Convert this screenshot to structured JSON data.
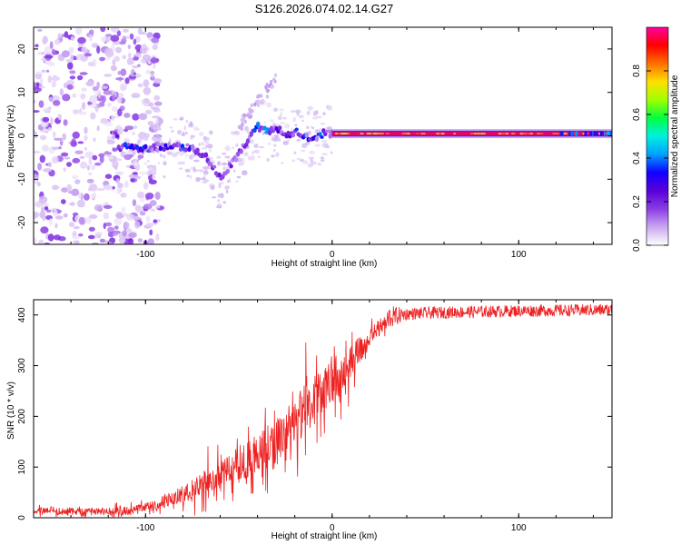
{
  "title": "S126.2026.074.02.14.G27",
  "chart_data": [
    {
      "type": "heatmap",
      "name": "spectrogram",
      "xlabel": "Height of straight line (km)",
      "ylabel": "Frequency (Hz)",
      "xlim": [
        -160,
        150
      ],
      "ylim": [
        -25,
        25
      ],
      "xticks": [
        -100,
        0,
        100
      ],
      "yticks": [
        20,
        10,
        0,
        -10,
        -20
      ],
      "colorbar": {
        "label": "Normalized spectral amplitude",
        "range": [
          0,
          1
        ],
        "ticks": [
          0.0,
          0.2,
          0.4,
          0.6,
          0.8
        ],
        "tick_labels": [
          "0.0",
          "0.2",
          "0.4",
          "0.6",
          "0.8"
        ],
        "colormap": [
          "#ffffff",
          "#c9a8f0",
          "#8a3ce6",
          "#5a00d8",
          "#1000ff",
          "#00a0ff",
          "#00f0e0",
          "#00ff40",
          "#a0ff00",
          "#ffe000",
          "#ff7000",
          "#ff0000",
          "#ff00a0"
        ]
      },
      "description_values": {
        "noise_region_x": [
          -160,
          -100
        ],
        "tone_ridge": [
          {
            "x": -115,
            "f": -2.5
          },
          {
            "x": -100,
            "f": -3
          },
          {
            "x": -90,
            "f": -2.5
          },
          {
            "x": -80,
            "f": -2.5
          },
          {
            "x": -72,
            "f": -3.5
          },
          {
            "x": -65,
            "f": -6
          },
          {
            "x": -60,
            "f": -10
          },
          {
            "x": -55,
            "f": -7
          },
          {
            "x": -50,
            "f": -4
          },
          {
            "x": -45,
            "f": -1
          },
          {
            "x": -40,
            "f": 2
          },
          {
            "x": -35,
            "f": 1
          },
          {
            "x": -30,
            "f": 2
          },
          {
            "x": -25,
            "f": 0
          },
          {
            "x": -20,
            "f": 1
          },
          {
            "x": -15,
            "f": 0
          },
          {
            "x": -10,
            "f": -1
          },
          {
            "x": -5,
            "f": 0.5
          },
          {
            "x": 0,
            "f": 0.5
          },
          {
            "x": 150,
            "f": 0.5
          }
        ],
        "steady_tone_start_x": 0,
        "steady_tone_amplitude": 0.95
      }
    },
    {
      "type": "line",
      "name": "snr",
      "xlabel": "Height of straight line (km)",
      "ylabel": "SNR (10 * v/v)",
      "xlim": [
        -160,
        150
      ],
      "ylim": [
        0,
        430
      ],
      "xticks": [
        -100,
        0,
        100
      ],
      "yticks": [
        0,
        100,
        200,
        300,
        400
      ],
      "color": "#ee2020",
      "trend": [
        {
          "x": -160,
          "y": 15
        },
        {
          "x": -130,
          "y": 12
        },
        {
          "x": -110,
          "y": 15
        },
        {
          "x": -95,
          "y": 25
        },
        {
          "x": -80,
          "y": 45
        },
        {
          "x": -70,
          "y": 70
        },
        {
          "x": -60,
          "y": 90
        },
        {
          "x": -50,
          "y": 105
        },
        {
          "x": -40,
          "y": 130
        },
        {
          "x": -30,
          "y": 150
        },
        {
          "x": -20,
          "y": 190
        },
        {
          "x": -10,
          "y": 230
        },
        {
          "x": 0,
          "y": 265
        },
        {
          "x": 10,
          "y": 310
        },
        {
          "x": 20,
          "y": 355
        },
        {
          "x": 30,
          "y": 395
        },
        {
          "x": 40,
          "y": 402
        },
        {
          "x": 60,
          "y": 405
        },
        {
          "x": 100,
          "y": 408
        },
        {
          "x": 150,
          "y": 410
        }
      ],
      "noise_amplitude": [
        {
          "x": -160,
          "a": 10
        },
        {
          "x": -100,
          "a": 12
        },
        {
          "x": -70,
          "a": 40
        },
        {
          "x": -40,
          "a": 70
        },
        {
          "x": -20,
          "a": 90
        },
        {
          "x": 0,
          "a": 70
        },
        {
          "x": 20,
          "a": 35
        },
        {
          "x": 40,
          "a": 12
        },
        {
          "x": 150,
          "a": 12
        }
      ]
    }
  ]
}
